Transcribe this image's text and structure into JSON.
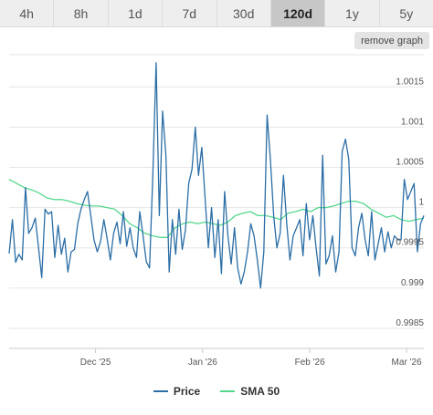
{
  "tabs": [
    {
      "label": "4h",
      "active": false
    },
    {
      "label": "8h",
      "active": false
    },
    {
      "label": "1d",
      "active": false
    },
    {
      "label": "7d",
      "active": false
    },
    {
      "label": "30d",
      "active": false
    },
    {
      "label": "120d",
      "active": true
    },
    {
      "label": "1y",
      "active": false
    },
    {
      "label": "5y",
      "active": false
    }
  ],
  "remove_graph_label": "remove graph",
  "legend": [
    {
      "name": "Price",
      "color": "#2b6ea6"
    },
    {
      "name": "SMA 50",
      "color": "#54d88c"
    }
  ],
  "chart_data": {
    "type": "line",
    "x_ticks": [
      "Dec '25",
      "Jan '26",
      "Feb '26",
      "Mar '26"
    ],
    "y_ticks": [
      "0.9985",
      "0.999",
      "0.9995",
      "1",
      "1.0005",
      "1.001",
      "1.0015"
    ],
    "ylim": [
      0.99825,
      1.0019
    ],
    "grid": true,
    "legend_position": "bottom",
    "series": [
      {
        "name": "Price",
        "color": "#2b6ea6",
        "x_start": "2025-11-06",
        "x_end": "2026-03-06",
        "values": [
          0.99943,
          0.99985,
          0.99932,
          0.99942,
          0.99935,
          1.00025,
          0.99968,
          0.99975,
          0.99987,
          0.9995,
          0.99913,
          0.99998,
          0.99992,
          0.99995,
          0.99938,
          0.99978,
          0.99942,
          0.99962,
          0.9992,
          0.99945,
          0.99948,
          0.9998,
          0.99998,
          1.0001,
          1.0002,
          0.9999,
          0.9996,
          0.99945,
          0.99958,
          0.99985,
          0.99962,
          0.99935,
          0.99968,
          0.99982,
          0.99955,
          0.99995,
          0.99952,
          0.99975,
          0.9995,
          0.99938,
          0.99995,
          0.99965,
          0.99933,
          0.99925,
          1.0004,
          1.0018,
          0.9999,
          1.0012,
          1.00065,
          0.9992,
          0.99985,
          0.99942,
          0.99998,
          0.99948,
          0.99972,
          1.0003,
          1.00048,
          1.001,
          1.0004,
          1.00075,
          1.00012,
          0.9995,
          1.0,
          0.99938,
          0.99985,
          0.99918,
          1.0002,
          0.99965,
          0.9993,
          0.99975,
          0.99925,
          0.99905,
          0.9992,
          0.99945,
          0.9998,
          0.99965,
          0.99935,
          0.999,
          0.99945,
          1.00115,
          1.0006,
          0.9999,
          0.9995,
          0.99968,
          1.0004,
          0.9998,
          0.99935,
          0.99965,
          0.99975,
          0.99985,
          0.9994,
          1.00005,
          0.9996,
          0.9999,
          0.9995,
          0.99915,
          1.00065,
          0.9993,
          0.9994,
          0.99965,
          0.9992,
          0.99945,
          1.0007,
          1.00085,
          1.0006,
          0.9995,
          0.9994,
          0.99975,
          0.99993,
          0.9996,
          0.9994,
          0.99995,
          0.99935,
          0.99955,
          0.99975,
          0.99945,
          0.9997,
          0.9995,
          0.99965,
          0.9996,
          0.9996,
          1.00035,
          1.0001,
          1.0002,
          1.0003,
          0.99945,
          0.9998,
          0.9999
        ]
      },
      {
        "name": "SMA 50",
        "color": "#54d88c",
        "x_start": "2025-11-06",
        "x_end": "2026-03-06",
        "values": [
          1.00035,
          1.0003,
          1.00025,
          1.00022,
          1.00018,
          1.00012,
          1.0001,
          1.0001,
          1.00008,
          1.00005,
          1.00003,
          1.00002,
          1.00002,
          1.0,
          0.99998,
          0.9999,
          0.9998,
          0.99975,
          0.99968,
          0.99965,
          0.99963,
          0.99963,
          0.99975,
          0.9998,
          0.99982,
          0.9998,
          0.99982,
          0.9998,
          0.99978,
          0.99982,
          0.9999,
          0.99993,
          0.99995,
          0.9999,
          0.9999,
          0.99988,
          0.99985,
          0.99993,
          0.99995,
          0.99998,
          0.99995,
          1.0,
          1.0,
          1.00002,
          1.00005,
          1.00008,
          1.00008,
          1.00005,
          0.99998,
          0.99993,
          0.99988,
          0.9999,
          0.99985,
          0.99983,
          0.99985,
          0.99987
        ]
      }
    ]
  }
}
